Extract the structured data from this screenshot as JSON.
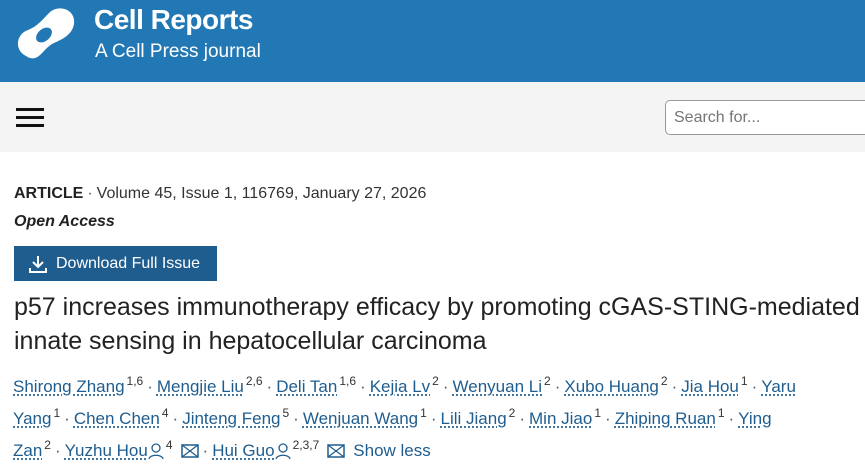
{
  "header": {
    "brand": "Cell Reports",
    "subtitle": "A Cell Press journal",
    "color": "#2278b5"
  },
  "search": {
    "placeholder": "Search for..."
  },
  "article": {
    "type": "ARTICLE",
    "citation": "Volume 45, Issue 1, 116769, January 27, 2026",
    "access": "Open Access",
    "download_label": "Download Full Issue",
    "title": "p57 increases immunotherapy efficacy by promoting cGAS-STING-mediated innate sensing in hepatocellular carcinoma"
  },
  "authors": [
    {
      "name": "Shirong Zhang",
      "aff": "1,6"
    },
    {
      "name": "Mengjie Liu",
      "aff": "2,6"
    },
    {
      "name": "Deli Tan",
      "aff": "1,6"
    },
    {
      "name": "Kejia Lv",
      "aff": "2"
    },
    {
      "name": "Wenyuan Li",
      "aff": "2"
    },
    {
      "name": "Xubo Huang",
      "aff": "2"
    },
    {
      "name": "Jia Hou",
      "aff": "1"
    },
    {
      "name": "Yaru Yang",
      "aff": "1"
    },
    {
      "name": "Chen Chen",
      "aff": "4"
    },
    {
      "name": "Jinteng Feng",
      "aff": "5"
    },
    {
      "name": "Wenjuan Wang",
      "aff": "1"
    },
    {
      "name": "Lili Jiang",
      "aff": "2"
    },
    {
      "name": "Min Jiao",
      "aff": "1"
    },
    {
      "name": "Zhiping Ruan",
      "aff": "1"
    },
    {
      "name": "Ying Zan",
      "aff": "2"
    },
    {
      "name": "Yuzhu Hou",
      "aff": "4",
      "corresponding": true
    },
    {
      "name": "Hui Guo",
      "aff": "2,3,7",
      "corresponding": true
    }
  ],
  "show_less": "Show less"
}
